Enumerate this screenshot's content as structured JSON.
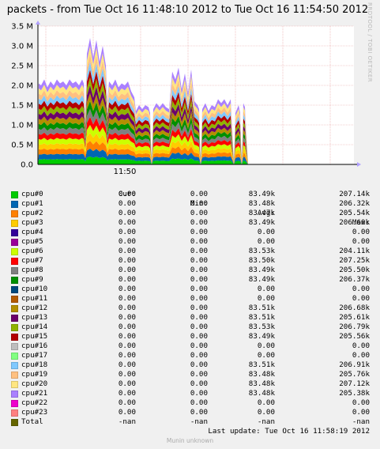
{
  "title": "packets - from Tue Oct 16 11:48:10 2012 to Tue Oct 16 11:54:50 2012",
  "watermark": "RRDTOOL / TOBI OETIKER",
  "legend_header": {
    "cur": "Cur:",
    "min": "Min:",
    "avg": "Avg:",
    "max": "Max:"
  },
  "legend": [
    {
      "name": "cpu#0",
      "color": "#00cc00",
      "cur": "0.00",
      "min": "0.00",
      "avg": "83.49k",
      "max": "207.14k"
    },
    {
      "name": "cpu#1",
      "color": "#0066b3",
      "cur": "0.00",
      "min": "0.00",
      "avg": "83.48k",
      "max": "206.32k"
    },
    {
      "name": "cpu#2",
      "color": "#ff8000",
      "cur": "0.00",
      "min": "0.00",
      "avg": "83.47k",
      "max": "205.54k"
    },
    {
      "name": "cpu#3",
      "color": "#ffcc00",
      "cur": "0.00",
      "min": "0.00",
      "avg": "83.49k",
      "max": "206.60k"
    },
    {
      "name": "cpu#4",
      "color": "#330099",
      "cur": "0.00",
      "min": "0.00",
      "avg": "0.00",
      "max": "0.00"
    },
    {
      "name": "cpu#5",
      "color": "#990099",
      "cur": "0.00",
      "min": "0.00",
      "avg": "0.00",
      "max": "0.00"
    },
    {
      "name": "cpu#6",
      "color": "#ccff00",
      "cur": "0.00",
      "min": "0.00",
      "avg": "83.53k",
      "max": "204.11k"
    },
    {
      "name": "cpu#7",
      "color": "#ff0000",
      "cur": "0.00",
      "min": "0.00",
      "avg": "83.50k",
      "max": "207.25k"
    },
    {
      "name": "cpu#8",
      "color": "#808080",
      "cur": "0.00",
      "min": "0.00",
      "avg": "83.49k",
      "max": "205.50k"
    },
    {
      "name": "cpu#9",
      "color": "#008f00",
      "cur": "0.00",
      "min": "0.00",
      "avg": "83.49k",
      "max": "206.37k"
    },
    {
      "name": "cpu#10",
      "color": "#00487d",
      "cur": "0.00",
      "min": "0.00",
      "avg": "0.00",
      "max": "0.00"
    },
    {
      "name": "cpu#11",
      "color": "#b35a00",
      "cur": "0.00",
      "min": "0.00",
      "avg": "0.00",
      "max": "0.00"
    },
    {
      "name": "cpu#12",
      "color": "#b38f00",
      "cur": "0.00",
      "min": "0.00",
      "avg": "83.51k",
      "max": "206.68k"
    },
    {
      "name": "cpu#13",
      "color": "#6b006b",
      "cur": "0.00",
      "min": "0.00",
      "avg": "83.51k",
      "max": "205.61k"
    },
    {
      "name": "cpu#14",
      "color": "#8fb300",
      "cur": "0.00",
      "min": "0.00",
      "avg": "83.53k",
      "max": "206.79k"
    },
    {
      "name": "cpu#15",
      "color": "#b30000",
      "cur": "0.00",
      "min": "0.00",
      "avg": "83.49k",
      "max": "205.56k"
    },
    {
      "name": "cpu#16",
      "color": "#bebebe",
      "cur": "0.00",
      "min": "0.00",
      "avg": "0.00",
      "max": "0.00"
    },
    {
      "name": "cpu#17",
      "color": "#80ff80",
      "cur": "0.00",
      "min": "0.00",
      "avg": "0.00",
      "max": "0.00"
    },
    {
      "name": "cpu#18",
      "color": "#80c9ff",
      "cur": "0.00",
      "min": "0.00",
      "avg": "83.51k",
      "max": "206.91k"
    },
    {
      "name": "cpu#19",
      "color": "#ffc080",
      "cur": "0.00",
      "min": "0.00",
      "avg": "83.48k",
      "max": "205.76k"
    },
    {
      "name": "cpu#20",
      "color": "#ffe680",
      "cur": "0.00",
      "min": "0.00",
      "avg": "83.48k",
      "max": "207.12k"
    },
    {
      "name": "cpu#21",
      "color": "#aa80ff",
      "cur": "0.00",
      "min": "0.00",
      "avg": "83.48k",
      "max": "205.38k"
    },
    {
      "name": "cpu#22",
      "color": "#ee00cc",
      "cur": "0.00",
      "min": "0.00",
      "avg": "0.00",
      "max": "0.00"
    },
    {
      "name": "cpu#23",
      "color": "#ff8080",
      "cur": "0.00",
      "min": "0.00",
      "avg": "0.00",
      "max": "0.00"
    },
    {
      "name": "Total",
      "color": "#666600",
      "cur": "-nan",
      "min": "-nan",
      "avg": "-nan",
      "max": "-nan"
    }
  ],
  "last_update": "Last update:  Tue Oct 16 11:58:19 2012",
  "footer": "Munin unknown",
  "chart_data": {
    "type": "area",
    "title": "packets - from Tue Oct 16 11:48:10 2012 to Tue Oct 16 11:54:50 2012",
    "stacked": true,
    "ylim": [
      0,
      3500000
    ],
    "y_ticks": [
      0,
      500000,
      1000000,
      1500000,
      2000000,
      2500000,
      3000000,
      3500000
    ],
    "y_tick_labels": [
      "0.0",
      "0.5 M",
      "1.0 M",
      "1.5 M",
      "2.0 M",
      "2.5 M",
      "3.0 M",
      "3.5 M"
    ],
    "x_tick_labels": [
      "11:50"
    ],
    "x_ticks_seconds": [
      110
    ],
    "x_range_seconds": [
      0,
      400
    ],
    "grid": true,
    "active_series": [
      "cpu#0",
      "cpu#1",
      "cpu#2",
      "cpu#3",
      "cpu#6",
      "cpu#7",
      "cpu#8",
      "cpu#9",
      "cpu#12",
      "cpu#13",
      "cpu#14",
      "cpu#15",
      "cpu#18",
      "cpu#19",
      "cpu#20",
      "cpu#21"
    ],
    "total_points": [
      {
        "t": 0,
        "v": 0
      },
      {
        "t": 1,
        "v": 2050000
      },
      {
        "t": 4,
        "v": 2000000
      },
      {
        "t": 8,
        "v": 2150000
      },
      {
        "t": 12,
        "v": 1950000
      },
      {
        "t": 16,
        "v": 2100000
      },
      {
        "t": 20,
        "v": 2000000
      },
      {
        "t": 24,
        "v": 2150000
      },
      {
        "t": 28,
        "v": 2050000
      },
      {
        "t": 32,
        "v": 2100000
      },
      {
        "t": 36,
        "v": 2000000
      },
      {
        "t": 40,
        "v": 2150000
      },
      {
        "t": 44,
        "v": 2050000
      },
      {
        "t": 48,
        "v": 2100000
      },
      {
        "t": 52,
        "v": 2000000
      },
      {
        "t": 56,
        "v": 2150000
      },
      {
        "t": 58,
        "v": 2050000
      },
      {
        "t": 60,
        "v": 1300000
      },
      {
        "t": 62,
        "v": 2800000
      },
      {
        "t": 66,
        "v": 3200000
      },
      {
        "t": 70,
        "v": 2700000
      },
      {
        "t": 74,
        "v": 3150000
      },
      {
        "t": 78,
        "v": 2600000
      },
      {
        "t": 82,
        "v": 3000000
      },
      {
        "t": 86,
        "v": 2500000
      },
      {
        "t": 88,
        "v": 1600000
      },
      {
        "t": 90,
        "v": 2100000
      },
      {
        "t": 94,
        "v": 2000000
      },
      {
        "t": 98,
        "v": 2150000
      },
      {
        "t": 102,
        "v": 1950000
      },
      {
        "t": 106,
        "v": 2050000
      },
      {
        "t": 110,
        "v": 2000000
      },
      {
        "t": 114,
        "v": 2100000
      },
      {
        "t": 118,
        "v": 1850000
      },
      {
        "t": 122,
        "v": 1700000
      },
      {
        "t": 124,
        "v": 1350000
      },
      {
        "t": 128,
        "v": 1500000
      },
      {
        "t": 132,
        "v": 1400000
      },
      {
        "t": 136,
        "v": 1500000
      },
      {
        "t": 140,
        "v": 1450000
      },
      {
        "t": 142,
        "v": 1300000
      },
      {
        "t": 144,
        "v": 50000
      },
      {
        "t": 146,
        "v": 1400000
      },
      {
        "t": 150,
        "v": 1550000
      },
      {
        "t": 154,
        "v": 1450000
      },
      {
        "t": 158,
        "v": 1550000
      },
      {
        "t": 162,
        "v": 1450000
      },
      {
        "t": 166,
        "v": 1400000
      },
      {
        "t": 170,
        "v": 2350000
      },
      {
        "t": 174,
        "v": 2150000
      },
      {
        "t": 178,
        "v": 2450000
      },
      {
        "t": 182,
        "v": 1900000
      },
      {
        "t": 186,
        "v": 2300000
      },
      {
        "t": 190,
        "v": 1800000
      },
      {
        "t": 194,
        "v": 2400000
      },
      {
        "t": 198,
        "v": 1600000
      },
      {
        "t": 202,
        "v": 1500000
      },
      {
        "t": 204,
        "v": 1400000
      },
      {
        "t": 206,
        "v": 30000
      },
      {
        "t": 208,
        "v": 1400000
      },
      {
        "t": 212,
        "v": 1550000
      },
      {
        "t": 216,
        "v": 1350000
      },
      {
        "t": 220,
        "v": 1500000
      },
      {
        "t": 224,
        "v": 1450000
      },
      {
        "t": 228,
        "v": 1650000
      },
      {
        "t": 232,
        "v": 1550000
      },
      {
        "t": 236,
        "v": 1650000
      },
      {
        "t": 240,
        "v": 1500000
      },
      {
        "t": 244,
        "v": 1650000
      },
      {
        "t": 246,
        "v": 900000
      },
      {
        "t": 248,
        "v": 50000
      },
      {
        "t": 250,
        "v": 1300000
      },
      {
        "t": 254,
        "v": 1500000
      },
      {
        "t": 256,
        "v": 1300000
      },
      {
        "t": 258,
        "v": 40000
      },
      {
        "t": 260,
        "v": 1550000
      },
      {
        "t": 262,
        "v": 1450000
      },
      {
        "t": 266,
        "v": 0
      },
      {
        "t": 400,
        "v": 0
      }
    ]
  }
}
